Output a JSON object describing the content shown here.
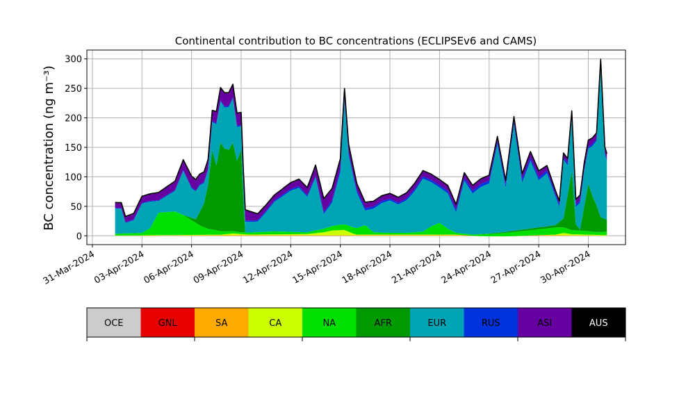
{
  "chart_data": {
    "type": "area",
    "stacked": true,
    "title": "Continental contribution to BC concentrations (ECLIPSEv6 and CAMS)",
    "ylabel": "BC concentration (ng m⁻³)",
    "xlabel": "",
    "ylim": [
      -15,
      315
    ],
    "yticks": [
      0,
      50,
      100,
      150,
      200,
      250,
      300
    ],
    "xlim": [
      "2024-03-30T16:00",
      "2024-05-02T06:00"
    ],
    "xticks": [
      "31-Mar-2024",
      "03-Apr-2024",
      "06-Apr-2024",
      "09-Apr-2024",
      "12-Apr-2024",
      "15-Apr-2024",
      "18-Apr-2024",
      "21-Apr-2024",
      "24-Apr-2024",
      "27-Apr-2024",
      "30-Apr-2024"
    ],
    "grid": true,
    "time_step_hours": 3,
    "start": "2024-04-01T09:00",
    "legend": {
      "placement": "colorbar-below",
      "entries": [
        "OCE",
        "GNL",
        "SA",
        "CA",
        "NA",
        "AFR",
        "EUR",
        "RUS",
        "ASI",
        "AUS"
      ]
    },
    "series": [
      {
        "name": "OCE",
        "color": "#cccccc",
        "knots": [
          [
            "2024-04-01T09:00",
            0
          ],
          [
            "2024-05-01T03:00",
            0
          ]
        ]
      },
      {
        "name": "GNL",
        "color": "#e60000",
        "knots": [
          [
            "2024-04-01T09:00",
            0
          ],
          [
            "2024-05-01T03:00",
            0
          ]
        ]
      },
      {
        "name": "SA",
        "color": "#ffaa00",
        "knots": [
          [
            "2024-04-01T09:00",
            0
          ],
          [
            "2024-04-08T12:00",
            1
          ],
          [
            "2024-04-14T00:00",
            1
          ],
          [
            "2024-04-28T00:00",
            1
          ],
          [
            "2024-05-01T03:00",
            0
          ]
        ]
      },
      {
        "name": "CA",
        "color": "#ccff00",
        "knots": [
          [
            "2024-04-01T09:00",
            0.5
          ],
          [
            "2024-04-07T18:00",
            1
          ],
          [
            "2024-04-08T12:00",
            3
          ],
          [
            "2024-04-09T12:00",
            1
          ],
          [
            "2024-04-13T00:00",
            2
          ],
          [
            "2024-04-14T00:00",
            5
          ],
          [
            "2024-04-14T12:00",
            8
          ],
          [
            "2024-04-15T06:00",
            9
          ],
          [
            "2024-04-15T18:00",
            3
          ],
          [
            "2024-04-16T00:00",
            1
          ],
          [
            "2024-04-22T00:00",
            1
          ],
          [
            "2024-04-23T00:00",
            -1
          ],
          [
            "2024-04-24T00:00",
            -2
          ],
          [
            "2024-04-25T00:00",
            -2
          ],
          [
            "2024-04-26T00:00",
            -1
          ],
          [
            "2024-04-28T00:00",
            1
          ],
          [
            "2024-04-28T12:00",
            4
          ],
          [
            "2024-04-29T00:00",
            2
          ],
          [
            "2024-05-01T03:00",
            1
          ]
        ]
      },
      {
        "name": "NA",
        "color": "#00e000",
        "knots": [
          [
            "2024-04-01T09:00",
            3
          ],
          [
            "2024-04-03T00:00",
            4
          ],
          [
            "2024-04-03T12:00",
            12
          ],
          [
            "2024-04-04T00:00",
            38
          ],
          [
            "2024-04-05T00:00",
            40
          ],
          [
            "2024-04-05T12:00",
            34
          ],
          [
            "2024-04-06T00:00",
            25
          ],
          [
            "2024-04-06T12:00",
            16
          ],
          [
            "2024-04-07T00:00",
            10
          ],
          [
            "2024-04-08T00:00",
            5
          ],
          [
            "2024-04-09T00:00",
            3
          ],
          [
            "2024-04-10T00:00",
            4
          ],
          [
            "2024-04-11T00:00",
            5
          ],
          [
            "2024-04-12T00:00",
            4
          ],
          [
            "2024-04-13T00:00",
            3
          ],
          [
            "2024-04-14T00:00",
            6
          ],
          [
            "2024-04-15T00:00",
            9
          ],
          [
            "2024-04-16T00:00",
            11
          ],
          [
            "2024-04-16T12:00",
            16
          ],
          [
            "2024-04-17T00:00",
            4
          ],
          [
            "2024-04-18T00:00",
            3
          ],
          [
            "2024-04-19T00:00",
            3
          ],
          [
            "2024-04-20T00:00",
            5
          ],
          [
            "2024-04-20T12:00",
            14
          ],
          [
            "2024-04-21T00:00",
            20
          ],
          [
            "2024-04-21T12:00",
            10
          ],
          [
            "2024-04-22T00:00",
            3
          ],
          [
            "2024-04-23T00:00",
            2
          ],
          [
            "2024-04-24T00:00",
            4
          ],
          [
            "2024-04-25T00:00",
            6
          ],
          [
            "2024-04-26T00:00",
            8
          ],
          [
            "2024-04-27T00:00",
            10
          ],
          [
            "2024-04-28T00:00",
            12
          ],
          [
            "2024-04-29T00:00",
            7
          ],
          [
            "2024-04-30T00:00",
            6
          ],
          [
            "2024-04-30T12:00",
            5
          ],
          [
            "2024-05-01T03:00",
            6
          ]
        ]
      },
      {
        "name": "AFR",
        "color": "#009900",
        "knots": [
          [
            "2024-04-01T09:00",
            0
          ],
          [
            "2024-04-05T12:00",
            0
          ],
          [
            "2024-04-06T06:00",
            6
          ],
          [
            "2024-04-06T18:00",
            40
          ],
          [
            "2024-04-07T00:00",
            75
          ],
          [
            "2024-04-07T06:00",
            135
          ],
          [
            "2024-04-07T12:00",
            110
          ],
          [
            "2024-04-07T18:00",
            150
          ],
          [
            "2024-04-08T00:00",
            140
          ],
          [
            "2024-04-08T06:00",
            138
          ],
          [
            "2024-04-08T12:00",
            150
          ],
          [
            "2024-04-08T18:00",
            120
          ],
          [
            "2024-04-09T00:00",
            140
          ],
          [
            "2024-04-09T03:00",
            60
          ],
          [
            "2024-04-09T06:00",
            0
          ],
          [
            "2024-04-23T00:00",
            0
          ],
          [
            "2024-04-28T00:00",
            4
          ],
          [
            "2024-04-28T12:00",
            15
          ],
          [
            "2024-04-29T00:00",
            100
          ],
          [
            "2024-04-29T06:00",
            10
          ],
          [
            "2024-04-29T12:00",
            2
          ],
          [
            "2024-04-30T00:00",
            80
          ],
          [
            "2024-04-30T06:00",
            60
          ],
          [
            "2024-04-30T12:00",
            45
          ],
          [
            "2024-04-30T18:00",
            25
          ],
          [
            "2024-05-01T03:00",
            20
          ]
        ]
      },
      {
        "name": "EUR",
        "color": "#00a4b5",
        "knots": [
          [
            "2024-04-01T09:00",
            43
          ],
          [
            "2024-04-01T18:00",
            42
          ],
          [
            "2024-04-02T00:00",
            18
          ],
          [
            "2024-04-02T12:00",
            22
          ],
          [
            "2024-04-03T00:00",
            50
          ],
          [
            "2024-04-03T12:00",
            45
          ],
          [
            "2024-04-04T00:00",
            20
          ],
          [
            "2024-04-05T00:00",
            35
          ],
          [
            "2024-04-05T12:00",
            75
          ],
          [
            "2024-04-06T00:00",
            50
          ],
          [
            "2024-04-06T12:00",
            45
          ],
          [
            "2024-04-07T00:00",
            25
          ],
          [
            "2024-04-07T12:00",
            70
          ],
          [
            "2024-04-08T00:00",
            70
          ],
          [
            "2024-04-08T12:00",
            75
          ],
          [
            "2024-04-09T00:00",
            40
          ],
          [
            "2024-04-09T06:00",
            18
          ],
          [
            "2024-04-10T00:00",
            18
          ],
          [
            "2024-04-10T12:00",
            33
          ],
          [
            "2024-04-11T00:00",
            50
          ],
          [
            "2024-04-11T12:00",
            60
          ],
          [
            "2024-04-12T00:00",
            70
          ],
          [
            "2024-04-12T12:00",
            75
          ],
          [
            "2024-04-13T00:00",
            60
          ],
          [
            "2024-04-13T12:00",
            90
          ],
          [
            "2024-04-14T00:00",
            25
          ],
          [
            "2024-04-14T12:00",
            40
          ],
          [
            "2024-04-15T00:00",
            90
          ],
          [
            "2024-04-15T06:00",
            210
          ],
          [
            "2024-04-15T12:00",
            120
          ],
          [
            "2024-04-16T00:00",
            60
          ],
          [
            "2024-04-16T12:00",
            25
          ],
          [
            "2024-04-17T00:00",
            40
          ],
          [
            "2024-04-17T12:00",
            50
          ],
          [
            "2024-04-18T00:00",
            55
          ],
          [
            "2024-04-18T12:00",
            48
          ],
          [
            "2024-04-19T00:00",
            55
          ],
          [
            "2024-04-19T12:00",
            70
          ],
          [
            "2024-04-20T00:00",
            90
          ],
          [
            "2024-04-20T12:00",
            75
          ],
          [
            "2024-04-21T00:00",
            60
          ],
          [
            "2024-04-21T12:00",
            60
          ],
          [
            "2024-04-22T00:00",
            35
          ],
          [
            "2024-04-22T12:00",
            90
          ],
          [
            "2024-04-23T00:00",
            70
          ],
          [
            "2024-04-23T12:00",
            80
          ],
          [
            "2024-04-24T00:00",
            85
          ],
          [
            "2024-04-24T12:00",
            150
          ],
          [
            "2024-04-25T00:00",
            75
          ],
          [
            "2024-04-25T12:00",
            180
          ],
          [
            "2024-04-26T00:00",
            80
          ],
          [
            "2024-04-26T12:00",
            115
          ],
          [
            "2024-04-27T00:00",
            80
          ],
          [
            "2024-04-27T12:00",
            90
          ],
          [
            "2024-04-28T00:00",
            50
          ],
          [
            "2024-04-28T06:00",
            25
          ],
          [
            "2024-04-28T12:00",
            100
          ],
          [
            "2024-04-28T18:00",
            50
          ],
          [
            "2024-04-29T00:00",
            90
          ],
          [
            "2024-04-29T06:00",
            30
          ],
          [
            "2024-04-29T12:00",
            45
          ],
          [
            "2024-04-29T18:00",
            60
          ],
          [
            "2024-04-30T00:00",
            60
          ],
          [
            "2024-04-30T12:00",
            110
          ],
          [
            "2024-04-30T18:00",
            255
          ],
          [
            "2024-05-01T00:00",
            110
          ],
          [
            "2024-05-01T03:00",
            100
          ]
        ]
      },
      {
        "name": "RUS",
        "color": "#0033dd",
        "knots": [
          [
            "2024-04-01T09:00",
            1
          ],
          [
            "2024-04-08T00:00",
            2
          ],
          [
            "2024-04-14T00:00",
            3
          ],
          [
            "2024-04-15T00:00",
            5
          ],
          [
            "2024-04-18T00:00",
            3
          ],
          [
            "2024-04-24T00:00",
            5
          ],
          [
            "2024-04-26T00:00",
            6
          ],
          [
            "2024-04-28T00:00",
            4
          ],
          [
            "2024-05-01T03:00",
            3
          ]
        ]
      },
      {
        "name": "ASI",
        "color": "#6600a0",
        "knots": [
          [
            "2024-04-01T09:00",
            8
          ],
          [
            "2024-04-03T00:00",
            10
          ],
          [
            "2024-04-05T00:00",
            14
          ],
          [
            "2024-04-06T00:00",
            18
          ],
          [
            "2024-04-07T00:00",
            15
          ],
          [
            "2024-04-08T00:00",
            22
          ],
          [
            "2024-04-09T00:00",
            20
          ],
          [
            "2024-04-10T00:00",
            10
          ],
          [
            "2024-04-11T00:00",
            8
          ],
          [
            "2024-04-12T00:00",
            10
          ],
          [
            "2024-04-13T00:00",
            12
          ],
          [
            "2024-04-14T00:00",
            22
          ],
          [
            "2024-04-15T00:00",
            16
          ],
          [
            "2024-04-16T00:00",
            10
          ],
          [
            "2024-04-17T00:00",
            8
          ],
          [
            "2024-04-18T00:00",
            8
          ],
          [
            "2024-04-20T00:00",
            9
          ],
          [
            "2024-04-22T00:00",
            8
          ],
          [
            "2024-04-24T00:00",
            8
          ],
          [
            "2024-04-25T00:00",
            6
          ],
          [
            "2024-04-26T00:00",
            8
          ],
          [
            "2024-04-27T00:00",
            10
          ],
          [
            "2024-04-28T00:00",
            5
          ],
          [
            "2024-04-30T00:00",
            10
          ],
          [
            "2024-05-01T03:00",
            8
          ]
        ]
      },
      {
        "name": "AUS",
        "color": "#000000",
        "knots": [
          [
            "2024-04-01T09:00",
            1
          ],
          [
            "2024-05-01T03:00",
            1
          ]
        ]
      }
    ]
  }
}
